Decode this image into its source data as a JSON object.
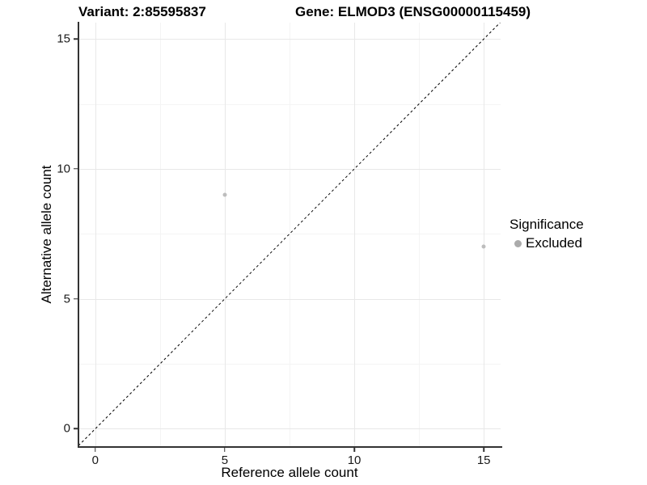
{
  "chart_data": {
    "type": "scatter",
    "title_left": "Variant: 2:85595837",
    "title_right": "Gene: ELMOD3 (ENSG00000115459)",
    "xlabel": "Reference allele count",
    "ylabel": "Alternative allele count",
    "x_ticks": [
      0,
      5,
      10,
      15
    ],
    "y_ticks": [
      0,
      5,
      10,
      15
    ],
    "x_minor": [
      2.5,
      7.5,
      12.5
    ],
    "y_minor": [
      2.5,
      7.5,
      12.5
    ],
    "xlim": [
      -0.65,
      15.65
    ],
    "ylim": [
      -0.67,
      15.63
    ],
    "grid": "major and minor gridlines, light gray on white panel",
    "reference_line": {
      "kind": "identity y=x",
      "style": "dashed",
      "color": "#000000"
    },
    "series": [
      {
        "name": "Excluded",
        "color": "#bdbdbd",
        "points": [
          {
            "x": 5,
            "y": 9
          },
          {
            "x": 15,
            "y": 7
          }
        ]
      }
    ],
    "legend": {
      "position": "right",
      "title": "Significance",
      "entries": [
        {
          "label": "Excluded",
          "color": "#ababab"
        }
      ]
    }
  }
}
